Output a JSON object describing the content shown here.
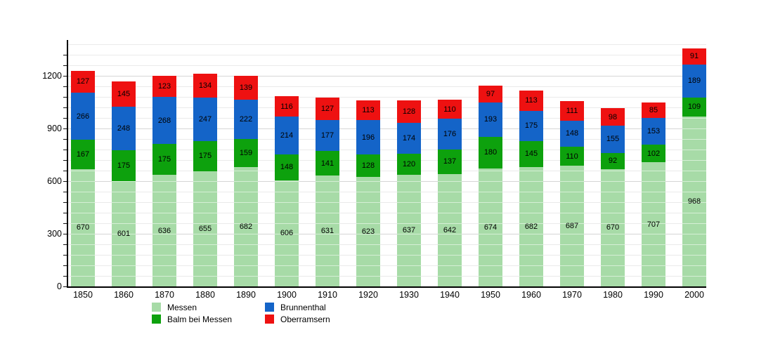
{
  "chart_data": {
    "type": "bar",
    "stacked": true,
    "title": "",
    "xlabel": "",
    "ylabel": "",
    "categories": [
      "1850",
      "1860",
      "1870",
      "1880",
      "1890",
      "1900",
      "1910",
      "1920",
      "1930",
      "1940",
      "1950",
      "1960",
      "1970",
      "1980",
      "1990",
      "2000"
    ],
    "series": [
      {
        "name": "Messen",
        "color": "#a7dba7",
        "values": [
          670,
          601,
          636,
          655,
          682,
          606,
          631,
          623,
          637,
          642,
          674,
          682,
          687,
          670,
          707,
          968
        ]
      },
      {
        "name": "Balm bei Messen",
        "color": "#0da10d",
        "values": [
          167,
          175,
          175,
          175,
          159,
          148,
          141,
          128,
          120,
          137,
          180,
          145,
          110,
          92,
          102,
          109
        ]
      },
      {
        "name": "Brunnenthal",
        "color": "#1464c8",
        "values": [
          266,
          248,
          268,
          247,
          222,
          214,
          177,
          196,
          174,
          176,
          193,
          175,
          148,
          155,
          153,
          189
        ]
      },
      {
        "name": "Oberramsern",
        "color": "#ee1111",
        "values": [
          127,
          145,
          123,
          134,
          139,
          116,
          127,
          113,
          128,
          110,
          97,
          113,
          111,
          98,
          85,
          91
        ]
      }
    ],
    "ylim": [
      0,
      1400
    ],
    "ytick_major": 300,
    "ytick_minor": 60,
    "ytick_labels": [
      "0",
      "300",
      "600",
      "900",
      "1200"
    ],
    "grid": true,
    "gridline_minor_color": "#eaeaea",
    "gridline_major_color": "#d6d6d6",
    "value_labels_shown": true,
    "legend_position": "bottom"
  }
}
